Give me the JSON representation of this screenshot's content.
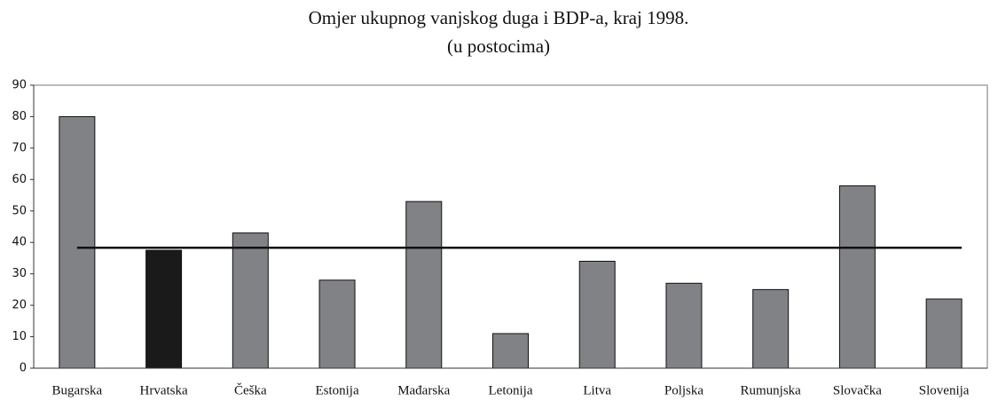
{
  "chart_data": {
    "type": "bar",
    "title": "Omjer ukupnog vanjskog duga i BDP-a, kraj 1998.",
    "subtitle": "(u postocima)",
    "categories": [
      "Bugarska",
      "Hrvatska",
      "Češka",
      "Estonija",
      "Mađarska",
      "Letonija",
      "Litva",
      "Poljska",
      "Rumunjska",
      "Slovačka",
      "Slovenija"
    ],
    "values": [
      80,
      37.5,
      43,
      28,
      53,
      11,
      34,
      27,
      25,
      58,
      22
    ],
    "colors": [
      "#808285",
      "#1a1a1a",
      "#808285",
      "#808285",
      "#808285",
      "#808285",
      "#808285",
      "#808285",
      "#808285",
      "#808285",
      "#808285"
    ],
    "reference_line": 38.3,
    "ylim": [
      0,
      90
    ],
    "yticks": [
      0,
      10,
      20,
      30,
      40,
      50,
      60,
      70,
      80,
      90
    ],
    "grid": false
  }
}
